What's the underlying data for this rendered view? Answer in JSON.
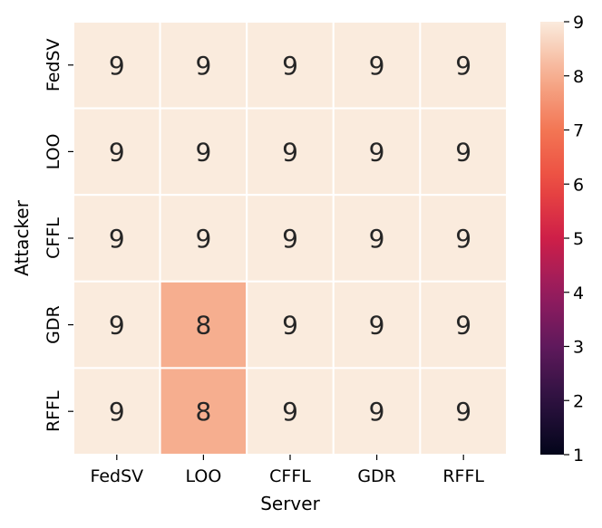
{
  "chart_data": {
    "type": "heatmap",
    "title": "",
    "xlabel": "Server",
    "ylabel": "Attacker",
    "x_categories": [
      "FedSV",
      "LOO",
      "CFFL",
      "GDR",
      "RFFL"
    ],
    "y_categories": [
      "FedSV",
      "LOO",
      "CFFL",
      "GDR",
      "RFFL"
    ],
    "values": [
      [
        9,
        9,
        9,
        9,
        9
      ],
      [
        9,
        9,
        9,
        9,
        9
      ],
      [
        9,
        9,
        9,
        9,
        9
      ],
      [
        9,
        8,
        9,
        9,
        9
      ],
      [
        9,
        8,
        9,
        9,
        9
      ]
    ],
    "colorbar": {
      "range": [
        1,
        9
      ],
      "ticks": [
        "1",
        "2",
        "3",
        "4",
        "5",
        "6",
        "7",
        "8",
        "9"
      ],
      "colormap": "rocket",
      "low_color": "#03051a",
      "high_color": "#faebdd"
    },
    "cell_border_color": "#ffffff"
  }
}
